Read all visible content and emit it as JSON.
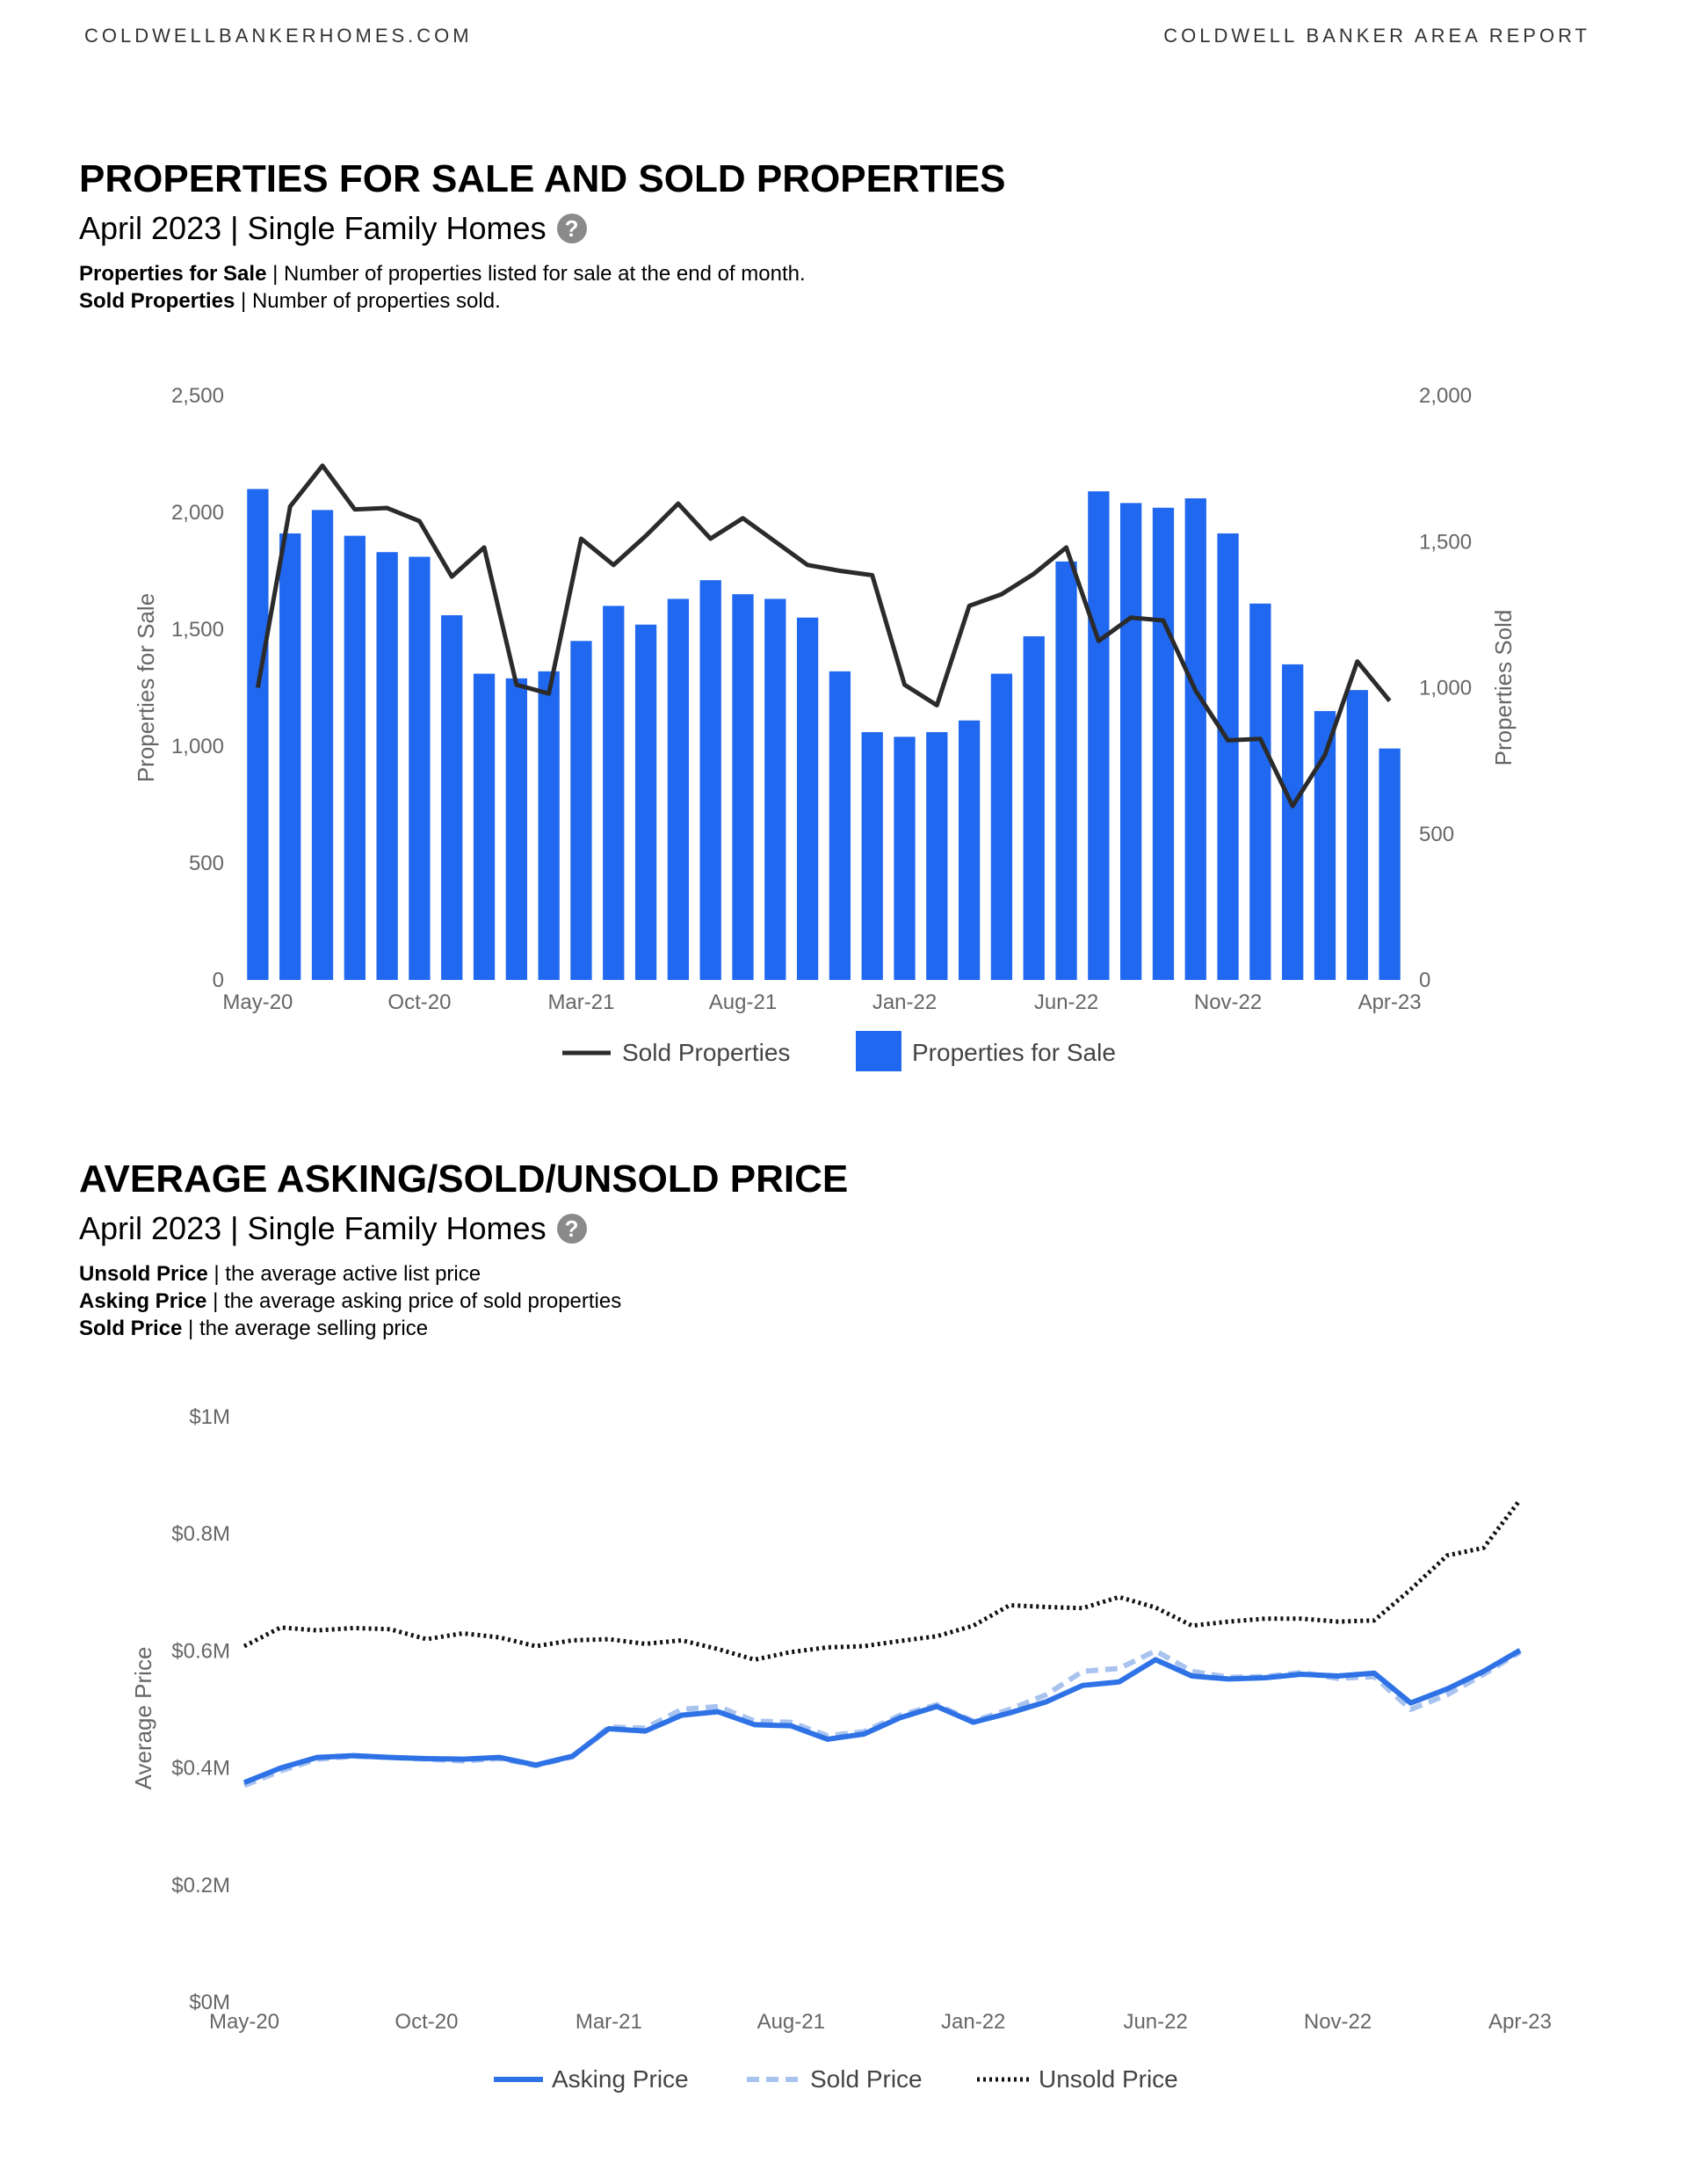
{
  "header": {
    "left": "COLDWELLBANKERHOMES.COM",
    "right": "COLDWELL BANKER AREA REPORT"
  },
  "section1": {
    "title": "PROPERTIES FOR SALE AND SOLD PROPERTIES",
    "subtitle": "April 2023 | Single Family Homes",
    "help": "?",
    "desc": [
      {
        "term": "Properties for Sale",
        "text": " | Number of properties listed for sale at the end of month."
      },
      {
        "term": "Sold Properties",
        "text": " | Number of properties sold."
      }
    ]
  },
  "section2": {
    "title": "AVERAGE ASKING/SOLD/UNSOLD PRICE",
    "subtitle": "April 2023 | Single Family Homes",
    "help": "?",
    "desc": [
      {
        "term": "Unsold Price",
        "text": " | the average active list price"
      },
      {
        "term": "Asking Price",
        "text": " | the average asking price of sold properties"
      },
      {
        "term": "Sold Price",
        "text": " | the average selling price"
      }
    ]
  },
  "colors": {
    "bar": "#2168f0",
    "sold_line": "#2b2b2b",
    "asking": "#2e72e6",
    "sold_price": "#a9c3ef",
    "unsold": "#111111",
    "axis_text": "#666666"
  },
  "chart_data": [
    {
      "type": "bar",
      "title": "PROPERTIES FOR SALE AND SOLD PROPERTIES",
      "ylabel": "Properties for Sale",
      "y2label": "Properties Sold",
      "ylim": [
        0,
        2500
      ],
      "y2lim": [
        0,
        2000
      ],
      "yticks": [
        "0",
        "500",
        "1,000",
        "1,500",
        "2,000",
        "2,500"
      ],
      "y2ticks": [
        "0",
        "500",
        "1,000",
        "1,500",
        "2,000"
      ],
      "xtick_labels": [
        "May-20",
        "Oct-20",
        "Mar-21",
        "Aug-21",
        "Jan-22",
        "Jun-22",
        "Nov-22",
        "Apr-23"
      ],
      "xtick_index": [
        0,
        5,
        10,
        15,
        20,
        25,
        30,
        35
      ],
      "categories": [
        "May-20",
        "Jun-20",
        "Jul-20",
        "Aug-20",
        "Sep-20",
        "Oct-20",
        "Nov-20",
        "Dec-20",
        "Jan-21",
        "Feb-21",
        "Mar-21",
        "Apr-21",
        "May-21",
        "Jun-21",
        "Jul-21",
        "Aug-21",
        "Sep-21",
        "Oct-21",
        "Nov-21",
        "Dec-21",
        "Jan-22",
        "Feb-22",
        "Mar-22",
        "Apr-22",
        "May-22",
        "Jun-22",
        "Jul-22",
        "Aug-22",
        "Sep-22",
        "Oct-22",
        "Nov-22",
        "Dec-22",
        "Jan-23",
        "Feb-23",
        "Mar-23",
        "Apr-23"
      ],
      "series": [
        {
          "name": "Properties for Sale",
          "axis": "left",
          "kind": "bar",
          "values": [
            2100,
            1910,
            2010,
            1900,
            1830,
            1810,
            1560,
            1310,
            1290,
            1320,
            1450,
            1600,
            1520,
            1630,
            1710,
            1650,
            1630,
            1550,
            1320,
            1060,
            1040,
            1060,
            1110,
            1310,
            1470,
            1790,
            2090,
            2040,
            2020,
            2060,
            1910,
            1610,
            1350,
            1150,
            1240,
            990
          ]
        },
        {
          "name": "Sold Properties",
          "axis": "right",
          "kind": "line",
          "values": [
            1000,
            1620,
            1760,
            1610,
            1615,
            1570,
            1380,
            1480,
            1010,
            980,
            1510,
            1420,
            1520,
            1630,
            1510,
            1580,
            1500,
            1420,
            1400,
            1385,
            1010,
            940,
            1280,
            1320,
            1390,
            1480,
            1160,
            1240,
            1230,
            990,
            820,
            825,
            595,
            770,
            1090,
            955
          ]
        }
      ],
      "legend": [
        "Sold Properties",
        "Properties for Sale"
      ]
    },
    {
      "type": "line",
      "title": "AVERAGE ASKING/SOLD/UNSOLD PRICE",
      "ylabel": "Average Price",
      "ylim": [
        0,
        1000000
      ],
      "yticks": [
        "$0M",
        "$0.2M",
        "$0.4M",
        "$0.6M",
        "$0.8M",
        "$1M"
      ],
      "xtick_labels": [
        "May-20",
        "Oct-20",
        "Mar-21",
        "Aug-21",
        "Jan-22",
        "Jun-22",
        "Nov-22",
        "Apr-23"
      ],
      "xtick_index": [
        0,
        5,
        10,
        15,
        20,
        25,
        30,
        35
      ],
      "series": [
        {
          "name": "Asking Price",
          "style": "solid",
          "values": [
            375000,
            400000,
            418000,
            421000,
            418000,
            416000,
            415000,
            418000,
            405000,
            420000,
            467000,
            463000,
            490000,
            496000,
            474000,
            472000,
            449000,
            458000,
            486000,
            505000,
            478000,
            494000,
            513000,
            541000,
            547000,
            585000,
            557000,
            552000,
            554000,
            560000,
            557000,
            562000,
            511000,
            535000,
            565000,
            601000
          ]
        },
        {
          "name": "Sold Price",
          "style": "dashed",
          "values": [
            370000,
            395000,
            415000,
            420000,
            418000,
            415000,
            412000,
            416000,
            404000,
            419000,
            470000,
            468000,
            500000,
            505000,
            480000,
            478000,
            455000,
            462000,
            490000,
            508000,
            480000,
            500000,
            525000,
            565000,
            570000,
            600000,
            565000,
            555000,
            556000,
            563000,
            553000,
            556000,
            500000,
            525000,
            560000,
            598000
          ]
        },
        {
          "name": "Unsold Price",
          "style": "dotted",
          "values": [
            608000,
            640000,
            635000,
            639000,
            637000,
            620000,
            630000,
            623000,
            608000,
            618000,
            620000,
            612000,
            618000,
            603000,
            585000,
            598000,
            606000,
            608000,
            617000,
            625000,
            643000,
            678000,
            675000,
            673000,
            692000,
            674000,
            643000,
            650000,
            655000,
            655000,
            650000,
            652000,
            705000,
            763000,
            776000,
            858000
          ]
        }
      ],
      "legend": [
        "Asking Price",
        "Sold Price",
        "Unsold Price"
      ]
    }
  ]
}
